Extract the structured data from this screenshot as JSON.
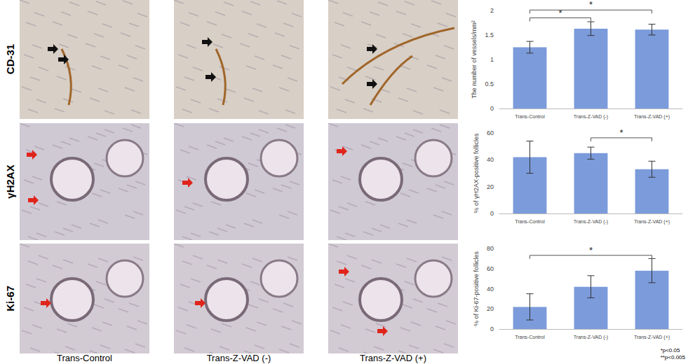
{
  "figure": {
    "row_labels": [
      "CD-31",
      "γH2AX",
      "Ki-67"
    ],
    "column_labels": [
      "Trans-Control",
      "Trans-Z-VAD (-)",
      "Trans-Z-VAD (+)"
    ],
    "footnotes": [
      "*p<0.05",
      "**p<0.005"
    ]
  },
  "chart_data": [
    {
      "type": "bar",
      "y_label": "The number of vessels/mm²",
      "categories": [
        "Trans-Control",
        "Trans-Z-VAD (-)",
        "Trans-Z-VAD (+)"
      ],
      "values": [
        1.25,
        1.63,
        1.61
      ],
      "errors": [
        0.12,
        0.14,
        0.11
      ],
      "color": "#7b9bdb",
      "ylim": [
        0,
        2
      ],
      "yticks": [
        0,
        0.5,
        1,
        1.5,
        2
      ],
      "grid": false,
      "annotations": [
        {
          "from": 0,
          "to": 1,
          "text": "*"
        },
        {
          "from": 0,
          "to": 2,
          "text": "*"
        }
      ]
    },
    {
      "type": "bar",
      "y_label": "% of γH2AX-positive follicles",
      "categories": [
        "Trans-Control",
        "Trans-Z-VAD (-)",
        "Trans-Z-VAD (+)"
      ],
      "values": [
        42,
        45,
        33
      ],
      "errors": [
        12,
        4.5,
        6
      ],
      "color": "#7b9bdb",
      "ylim": [
        0,
        60
      ],
      "yticks": [
        0,
        20,
        40,
        60
      ],
      "grid": false,
      "annotations": [
        {
          "from": 1,
          "to": 2,
          "text": "*"
        }
      ]
    },
    {
      "type": "bar",
      "y_label": "% of Ki-67-positive follicles",
      "categories": [
        "Trans-Control",
        "Trans-Z-VAD (-)",
        "Trans-Z-VAD (+)"
      ],
      "values": [
        22,
        42,
        58
      ],
      "errors": [
        13,
        11,
        12
      ],
      "color": "#7b9bdb",
      "ylim": [
        0,
        80
      ],
      "yticks": [
        0,
        20,
        40,
        60,
        80
      ],
      "grid": false,
      "annotations": [
        {
          "from": 0,
          "to": 2,
          "text": "*"
        }
      ]
    }
  ]
}
